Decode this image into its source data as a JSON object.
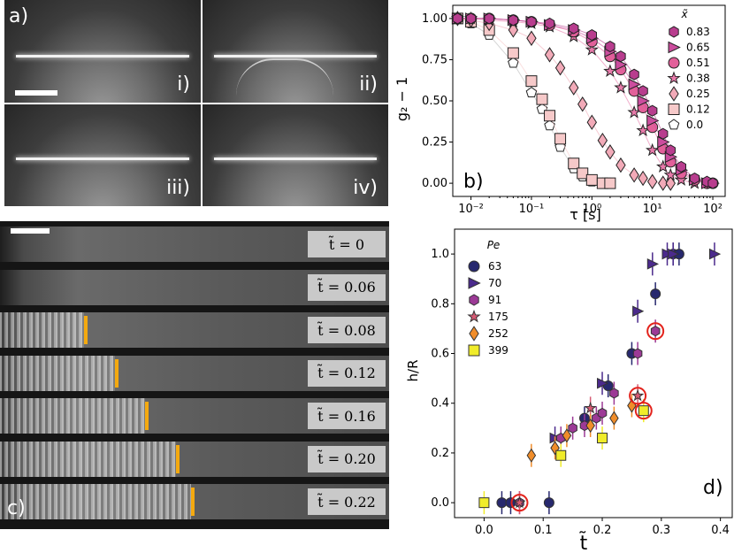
{
  "panel_a": {
    "letter": "a)",
    "subpanels": [
      "i)",
      "ii)",
      "iii)",
      "iv)"
    ]
  },
  "panel_c": {
    "letter": "c)",
    "rows": [
      {
        "label": "t̃ = 0",
        "front": null
      },
      {
        "label": "t̃ = 0.06",
        "front": null
      },
      {
        "label": "t̃ = 0.08",
        "front": 0.08
      },
      {
        "label": "t̃ = 0.12",
        "front": 0.12
      },
      {
        "label": "t̃ = 0.16",
        "front": 0.16
      },
      {
        "label": "t̃ = 0.20",
        "front": 0.2
      },
      {
        "label": "t̃ = 0.22",
        "front": 0.22
      }
    ],
    "front_color": "#f4a90f"
  },
  "chart_data": [
    {
      "panel": "b)",
      "type": "scatter",
      "xlabel": "τ  [s]",
      "ylabel": "g₂ − 1",
      "xscale": "log",
      "xlim": [
        0.005,
        160
      ],
      "ylim": [
        -0.08,
        1.08
      ],
      "yticks": [
        "0.00",
        "0.25",
        "0.50",
        "0.75",
        "1.00"
      ],
      "xticks": [
        "10⁻²",
        "10⁻¹",
        "10⁰",
        "10¹",
        "10²"
      ],
      "legend_title": "x̃",
      "legend_position": "right",
      "series": [
        {
          "name": "0.83",
          "marker": "hexagon",
          "color": "#b83d8e",
          "tau": [
            0.006,
            0.01,
            0.02,
            0.05,
            0.1,
            0.2,
            0.5,
            1,
            2,
            3,
            5,
            7,
            10,
            15,
            20,
            30,
            50,
            80,
            100
          ],
          "values": [
            1.0,
            1.0,
            1.0,
            0.99,
            0.98,
            0.97,
            0.94,
            0.9,
            0.83,
            0.77,
            0.66,
            0.56,
            0.44,
            0.3,
            0.2,
            0.1,
            0.03,
            0.01,
            0.0
          ]
        },
        {
          "name": "0.65",
          "marker": "triangle-right",
          "color": "#cc4d9e",
          "tau": [
            0.006,
            0.01,
            0.02,
            0.05,
            0.1,
            0.2,
            0.5,
            1,
            2,
            3,
            5,
            7,
            10,
            15,
            20,
            30,
            50,
            80,
            100
          ],
          "values": [
            1.0,
            1.0,
            1.0,
            0.99,
            0.98,
            0.96,
            0.93,
            0.88,
            0.8,
            0.72,
            0.6,
            0.5,
            0.38,
            0.25,
            0.16,
            0.08,
            0.02,
            0.0,
            0.0
          ]
        },
        {
          "name": "0.51",
          "marker": "circle",
          "color": "#e2609a",
          "tau": [
            0.006,
            0.01,
            0.02,
            0.05,
            0.1,
            0.2,
            0.5,
            1,
            2,
            3,
            5,
            7,
            10,
            15,
            20,
            30,
            50,
            80,
            100
          ],
          "values": [
            1.0,
            1.0,
            1.0,
            0.99,
            0.98,
            0.96,
            0.92,
            0.86,
            0.77,
            0.69,
            0.56,
            0.46,
            0.34,
            0.21,
            0.13,
            0.06,
            0.02,
            0.0,
            0.0
          ]
        },
        {
          "name": "0.38",
          "marker": "star",
          "color": "#e87aaa",
          "tau": [
            0.006,
            0.01,
            0.02,
            0.05,
            0.1,
            0.2,
            0.5,
            1,
            2,
            3,
            5,
            7,
            10,
            15,
            20,
            30,
            50
          ],
          "values": [
            1.0,
            1.0,
            0.99,
            0.98,
            0.97,
            0.95,
            0.89,
            0.81,
            0.68,
            0.58,
            0.43,
            0.32,
            0.2,
            0.1,
            0.05,
            0.02,
            0.0
          ]
        },
        {
          "name": "0.25",
          "marker": "diamond",
          "color": "#f2aab8",
          "tau": [
            0.006,
            0.01,
            0.02,
            0.05,
            0.1,
            0.2,
            0.3,
            0.5,
            0.7,
            1,
            1.5,
            2,
            3,
            5,
            7,
            10,
            15,
            20
          ],
          "values": [
            1.0,
            0.99,
            0.97,
            0.93,
            0.88,
            0.78,
            0.7,
            0.58,
            0.48,
            0.37,
            0.26,
            0.19,
            0.11,
            0.05,
            0.03,
            0.01,
            0.0,
            0.0
          ]
        },
        {
          "name": "0.12",
          "marker": "square",
          "color": "#f6c9c9",
          "tau": [
            0.006,
            0.01,
            0.02,
            0.05,
            0.1,
            0.15,
            0.2,
            0.3,
            0.5,
            0.7,
            1,
            1.5,
            2
          ],
          "values": [
            1.0,
            0.98,
            0.93,
            0.79,
            0.62,
            0.51,
            0.41,
            0.27,
            0.12,
            0.06,
            0.02,
            0.0,
            0.0
          ]
        },
        {
          "name": "0.0",
          "marker": "pentagon",
          "color": "#ffffff",
          "tau": [
            0.006,
            0.01,
            0.02,
            0.05,
            0.1,
            0.15,
            0.2,
            0.3,
            0.5,
            0.7,
            1,
            1.5,
            2
          ],
          "values": [
            1.0,
            0.97,
            0.9,
            0.73,
            0.55,
            0.45,
            0.35,
            0.22,
            0.09,
            0.04,
            0.01,
            0.0,
            0.0
          ]
        }
      ]
    },
    {
      "panel": "d)",
      "type": "scatter",
      "xlabel": "t̃",
      "ylabel": "h/R",
      "xlim": [
        -0.05,
        0.42
      ],
      "ylim": [
        -0.06,
        1.1
      ],
      "xticks": [
        0.0,
        0.1,
        0.2,
        0.3,
        0.4
      ],
      "yticks": [
        0.0,
        0.2,
        0.4,
        0.6,
        0.8,
        1.0
      ],
      "legend_title": "Pe",
      "legend_position": "top-left",
      "series": [
        {
          "name": "63",
          "marker": "circle",
          "color": "#27286e",
          "x": [
            0.03,
            0.045,
            0.11,
            0.17,
            0.21,
            0.25,
            0.29,
            0.32,
            0.33
          ],
          "y": [
            0.0,
            0.0,
            0.0,
            0.34,
            0.47,
            0.6,
            0.84,
            1.0,
            1.0
          ]
        },
        {
          "name": "70",
          "marker": "triangle-right",
          "color": "#4b2a8c",
          "x": [
            0.12,
            0.2,
            0.26,
            0.285,
            0.31,
            0.32,
            0.39
          ],
          "y": [
            0.26,
            0.48,
            0.77,
            0.96,
            1.0,
            1.0,
            1.0
          ]
        },
        {
          "name": "91",
          "marker": "hexagon",
          "color": "#9c3a96",
          "x": [
            0.06,
            0.13,
            0.15,
            0.17,
            0.19,
            0.2,
            0.22,
            0.26,
            0.29
          ],
          "y": [
            0.0,
            0.26,
            0.3,
            0.31,
            0.34,
            0.36,
            0.44,
            0.6,
            0.69
          ]
        },
        {
          "name": "175",
          "marker": "star",
          "color": "#d65a73",
          "x": [
            0.06,
            0.18,
            0.26
          ],
          "y": [
            0.0,
            0.38,
            0.43
          ]
        },
        {
          "name": "252",
          "marker": "diamond",
          "color": "#f08d2a",
          "x": [
            0.08,
            0.12,
            0.14,
            0.18,
            0.22,
            0.25
          ],
          "y": [
            0.19,
            0.22,
            0.27,
            0.31,
            0.34,
            0.39
          ]
        },
        {
          "name": "399",
          "marker": "square",
          "color": "#f0ec2a",
          "x": [
            0.0,
            0.13,
            0.2,
            0.27
          ],
          "y": [
            0.0,
            0.19,
            0.26,
            0.37
          ]
        }
      ],
      "highlighted": [
        {
          "x": 0.06,
          "y": 0.0
        },
        {
          "x": 0.29,
          "y": 0.69
        },
        {
          "x": 0.26,
          "y": 0.43
        },
        {
          "x": 0.27,
          "y": 0.37
        }
      ],
      "highlight_color": "#e3231c"
    }
  ]
}
